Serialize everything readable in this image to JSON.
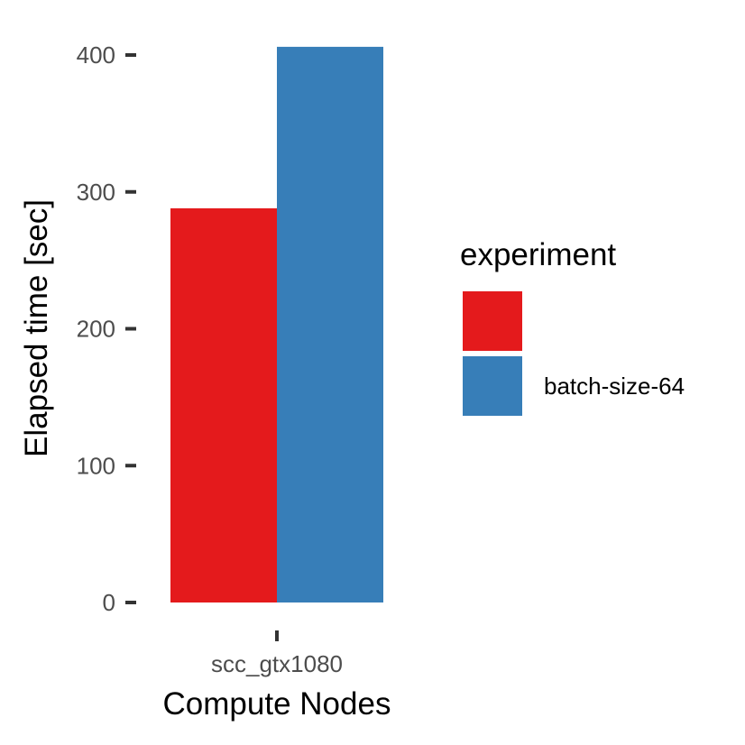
{
  "chart_data": {
    "type": "bar",
    "categories": [
      "scc_gtx1080"
    ],
    "series": [
      {
        "name": "",
        "color": "#E41A1C",
        "values": [
          288
        ]
      },
      {
        "name": "batch-size-64",
        "color": "#377EB8",
        "values": [
          406
        ]
      }
    ],
    "xlabel": "Compute Nodes",
    "ylabel": "Elapsed time [sec]",
    "ylim": [
      0,
      420
    ],
    "yticks": [
      0,
      100,
      200,
      300,
      400
    ],
    "grid": false,
    "legend": {
      "title": "experiment",
      "placement": "right"
    }
  }
}
